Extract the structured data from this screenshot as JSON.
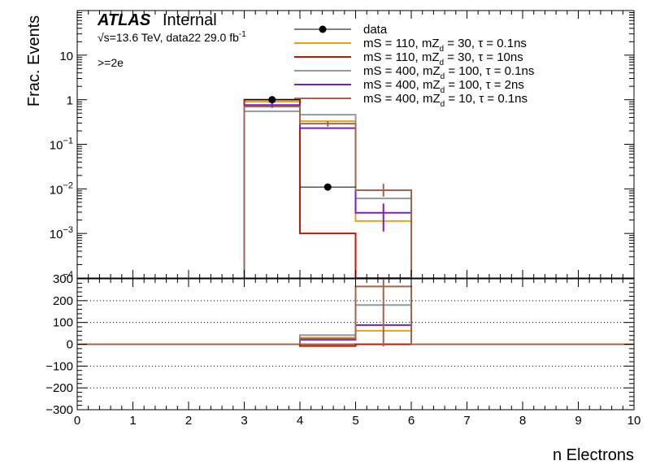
{
  "header": {
    "atlas": "ATLAS",
    "internal": "Internal",
    "energy": "√s=13.6 TeV, data22 29.0 fb",
    "energy_sup": "-1",
    "selection": ">=2e"
  },
  "chart_data": [
    {
      "type": "line",
      "panel": "top",
      "ylabel": "Frac. Events",
      "yscale": "log",
      "ylim": [
        0.0001,
        100
      ],
      "y_ticks": [
        {
          "v": 10,
          "base": "10",
          "exp": ""
        },
        {
          "v": 1,
          "base": "1",
          "exp": ""
        },
        {
          "v": 0.1,
          "base": "10",
          "exp": "−1"
        },
        {
          "v": 0.01,
          "base": "10",
          "exp": "−2"
        },
        {
          "v": 0.001,
          "base": "10",
          "exp": "−3"
        },
        {
          "v": 0.0001,
          "base": "",
          "exp": "−4"
        }
      ],
      "xlim": [
        0,
        10
      ],
      "bin_edges": [
        2,
        3,
        4,
        5,
        6,
        7
      ],
      "data": {
        "name": "data",
        "color": "#000000",
        "points": [
          {
            "x": 3.5,
            "y": 1.0
          },
          {
            "x": 4.5,
            "y": 0.011
          }
        ]
      },
      "series": [
        {
          "name": "mS = 110, mZ_d = 30, τ = 0.1ns",
          "color": "#e8a317",
          "values": [
            0,
            0.9,
            0.33,
            0.0019,
            0
          ]
        },
        {
          "name": "mS = 110, mZ_d = 30, τ = 10ns",
          "color": "#c21a00",
          "values": [
            0,
            1.0,
            0.001,
            0.0001,
            0
          ]
        },
        {
          "name": "mS = 400, mZ_d = 100, τ = 0.1ns",
          "color": "#8f9ba0",
          "values": [
            0,
            0.55,
            0.46,
            0.0061,
            0
          ]
        },
        {
          "name": "mS = 400, mZ_d = 100, τ = 2ns",
          "color": "#7a1fbd",
          "values": [
            0,
            0.76,
            0.23,
            0.0029,
            0
          ]
        },
        {
          "name": "mS = 400, mZ_d = 10, τ = 0.1ns",
          "color": "#a0654e",
          "values": [
            0,
            0.7,
            0.29,
            0.0093,
            0
          ]
        }
      ],
      "errors": [
        {
          "x": 3.5,
          "y": 0.76,
          "lo": 0.66,
          "hi": 0.88,
          "color": "#7a1fbd"
        },
        {
          "x": 4.5,
          "y": 0.29,
          "lo": 0.25,
          "hi": 0.33,
          "color": "#a0654e"
        },
        {
          "x": 5.5,
          "y": 0.0093,
          "lo": 0.0067,
          "hi": 0.013,
          "color": "#a0654e"
        },
        {
          "x": 5.5,
          "y": 0.0029,
          "lo": 0.0011,
          "hi": 0.0047,
          "color": "#7a1fbd"
        }
      ],
      "legend": {
        "placement": "top-right"
      }
    },
    {
      "type": "line",
      "panel": "bottom",
      "xlabel": "n Electrons",
      "ylim": [
        -300,
        300
      ],
      "y_ticks": [
        300,
        200,
        100,
        0,
        -100,
        -200,
        -300
      ],
      "y_tick_labels": [
        "300",
        "200",
        "100",
        "0",
        "−100",
        "−200",
        "−300"
      ],
      "x_ticks": [
        0,
        1,
        2,
        3,
        4,
        5,
        6,
        7,
        8,
        9,
        10
      ],
      "grid_y": true,
      "bin_edges": [
        4,
        5,
        6
      ],
      "series": [
        {
          "name": "mS = 110, mZ_d = 30, τ = 0.1ns",
          "color": "#e8a317",
          "values": [
            30,
            62
          ]
        },
        {
          "name": "mS = 110, mZ_d = 30, τ = 10ns",
          "color": "#c21a00",
          "values": [
            -8,
            0
          ]
        },
        {
          "name": "mS = 400, mZ_d = 100, τ = 0.1ns",
          "color": "#8f9ba0",
          "values": [
            42,
            180
          ]
        },
        {
          "name": "mS = 400, mZ_d = 100, τ = 2ns",
          "color": "#7a1fbd",
          "values": [
            21,
            88
          ]
        },
        {
          "name": "mS = 400, mZ_d = 10, τ = 0.1ns",
          "color": "#a0654e",
          "values": [
            26,
            265
          ]
        }
      ],
      "errors": [
        {
          "x": 5.5,
          "y": 265,
          "lo": -10,
          "hi": 300,
          "color": "#a0654e"
        }
      ]
    }
  ]
}
